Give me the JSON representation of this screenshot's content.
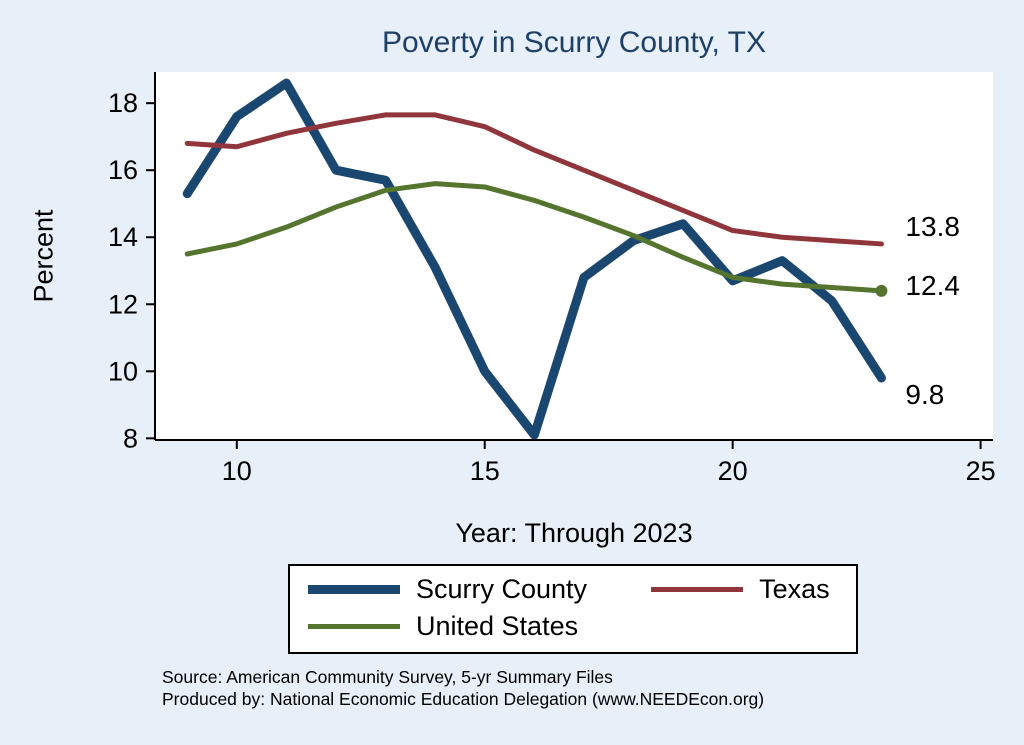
{
  "chart_data": {
    "type": "line",
    "title": "Poverty in Scurry County, TX",
    "xlabel": "Year: Through 2023",
    "ylabel": "Percent",
    "x": [
      9,
      10,
      11,
      12,
      13,
      14,
      15,
      16,
      17,
      18,
      19,
      20,
      21,
      22,
      23
    ],
    "xlim": [
      8.35,
      25.25
    ],
    "ylim": [
      7.95,
      18.93
    ],
    "xticks": [
      10,
      15,
      20,
      25
    ],
    "yticks": [
      8,
      10,
      12,
      14,
      16,
      18
    ],
    "grid": false,
    "legend_position": "bottom",
    "background_color": "#e7eff8",
    "plot_background": "#ffffff",
    "series": [
      {
        "name": "Scurry County",
        "color": "#1a476f",
        "width": 9,
        "end_label": "9.8",
        "end_dx": 24,
        "end_dy": 17,
        "end_marker": false,
        "values": [
          15.3,
          17.6,
          18.6,
          16.0,
          15.7,
          13.1,
          10.0,
          8.1,
          12.8,
          13.9,
          14.4,
          12.7,
          13.3,
          12.1,
          9.8
        ]
      },
      {
        "name": "Texas",
        "color": "#90353b",
        "width": 5,
        "end_label": "13.8",
        "end_dx": 24,
        "end_dy": -17,
        "end_marker": false,
        "values": [
          16.8,
          16.7,
          17.1,
          17.4,
          17.65,
          17.65,
          17.3,
          16.6,
          16.0,
          15.4,
          14.8,
          14.2,
          14.0,
          13.9,
          13.8
        ]
      },
      {
        "name": "United States",
        "color": "#55752f",
        "width": 5,
        "end_label": "12.4",
        "end_dx": 24,
        "end_dy": -5,
        "end_marker": true,
        "values": [
          13.5,
          13.8,
          14.3,
          14.9,
          15.4,
          15.6,
          15.5,
          15.1,
          14.6,
          14.05,
          13.4,
          12.8,
          12.6,
          12.5,
          12.4
        ]
      }
    ],
    "source_line1": "Source: American Community Survey, 5-yr Summary Files",
    "source_line2": "Produced by: National Economic Education Delegation (www.NEEDEcon.org)"
  }
}
